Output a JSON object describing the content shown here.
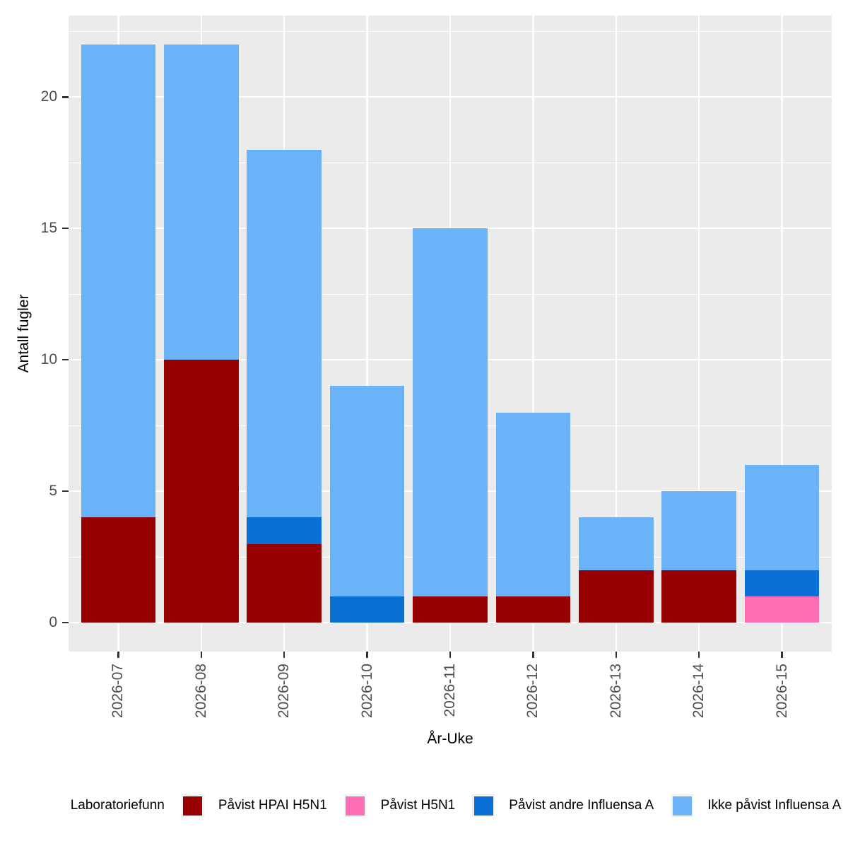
{
  "chart_data": {
    "type": "bar",
    "stacked": true,
    "orientation": "vertical",
    "title": "",
    "xlabel": "År-Uke",
    "ylabel": "Antall fugler",
    "categories": [
      "2026-07",
      "2026-08",
      "2026-09",
      "2026-10",
      "2026-11",
      "2026-12",
      "2026-13",
      "2026-14",
      "2026-15"
    ],
    "series": [
      {
        "name": "Påvist HPAI H5N1",
        "color": "#980000",
        "values": [
          4,
          10,
          3,
          0,
          1,
          1,
          2,
          2,
          0
        ]
      },
      {
        "name": "Påvist H5N1",
        "color": "#FF6EB4",
        "values": [
          0,
          0,
          0,
          0,
          0,
          0,
          0,
          0,
          1
        ]
      },
      {
        "name": "Påvist andre Influensa A",
        "color": "#0A70D6",
        "values": [
          0,
          0,
          1,
          1,
          0,
          0,
          0,
          0,
          1
        ]
      },
      {
        "name": "Ikke påvist Influensa A",
        "color": "#6BB3F8",
        "values": [
          18,
          12,
          14,
          8,
          14,
          7,
          2,
          3,
          4
        ]
      }
    ],
    "totals": [
      22,
      22,
      18,
      9,
      15,
      8,
      4,
      5,
      6
    ],
    "y_axis": {
      "major_ticks": [
        0,
        5,
        10,
        15,
        20
      ],
      "minor_ticks": [
        2.5,
        7.5,
        12.5,
        17.5,
        22.5
      ],
      "range_expanded": [
        -1.1,
        23.1
      ]
    },
    "legend": {
      "title": "Laboratoriefunn",
      "position": "bottom"
    },
    "grid": true,
    "style": {
      "panel_bg": "#EBEBEB",
      "grid_color": "#FFFFFF",
      "tick_color": "#333333",
      "tick_label_color": "#4D4D4D",
      "legend_key_bg": "#F2F2F2"
    }
  }
}
